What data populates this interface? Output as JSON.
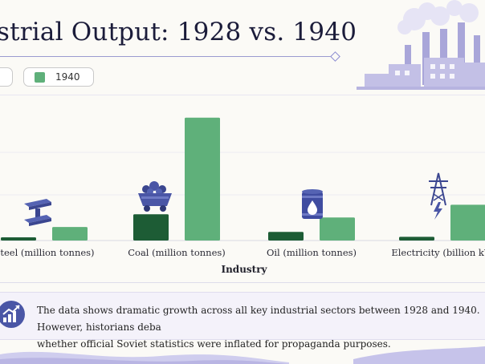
{
  "title": "strial Output: 1928 vs. 1940",
  "legend": {
    "label_1940": "1940"
  },
  "colors": {
    "series_1928": "#1d5c35",
    "series_1940": "#5fb07a",
    "accent": "#8b8bd1"
  },
  "icons": [
    "steel-beam-icon",
    "coal-cart-icon",
    "oil-barrel-icon",
    "power-pylon-icon",
    "factory-illustration",
    "growth-chart-icon"
  ],
  "chart_data": {
    "type": "bar",
    "xlabel": "Industry",
    "ylabel": "",
    "ylim": [
      0,
      170
    ],
    "categories": [
      "Steel (million tonnes)",
      "Coal (million tonnes)",
      "Oil (million tonnes)",
      "Electricity (billion kW"
    ],
    "series": [
      {
        "name": "",
        "values": [
          4.3,
          35.5,
          11.6,
          5.0
        ]
      },
      {
        "name": "1940",
        "values": [
          18.3,
          165.9,
          31.1,
          48.3
        ]
      }
    ],
    "grid": true
  },
  "note": {
    "line1": "The data shows dramatic growth across all key industrial sectors between 1928 and 1940. However, historians deba",
    "line2": "whether official Soviet statistics were inflated for propaganda purposes."
  }
}
